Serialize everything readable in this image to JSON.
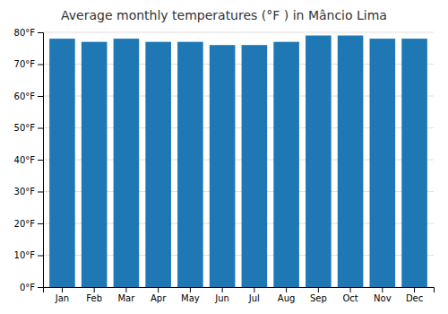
{
  "chart_data": {
    "type": "bar",
    "title": "Average monthly temperatures (°F ) in Mâncio Lima",
    "categories": [
      "Jan",
      "Feb",
      "Mar",
      "Apr",
      "May",
      "Jun",
      "Jul",
      "Aug",
      "Sep",
      "Oct",
      "Nov",
      "Dec"
    ],
    "values": [
      78,
      77,
      78,
      77,
      77,
      76,
      76,
      77,
      79,
      79,
      78,
      78
    ],
    "ylim": [
      0,
      80
    ],
    "yticks": [
      {
        "value": 0,
        "label": "0°F"
      },
      {
        "value": 10,
        "label": "10°F"
      },
      {
        "value": 20,
        "label": "20°F"
      },
      {
        "value": 30,
        "label": "30°F"
      },
      {
        "value": 40,
        "label": "40°F"
      },
      {
        "value": 50,
        "label": "50°F"
      },
      {
        "value": 60,
        "label": "60°F"
      },
      {
        "value": 70,
        "label": "70°F"
      },
      {
        "value": 80,
        "label": "80°F"
      }
    ],
    "grid": true
  }
}
